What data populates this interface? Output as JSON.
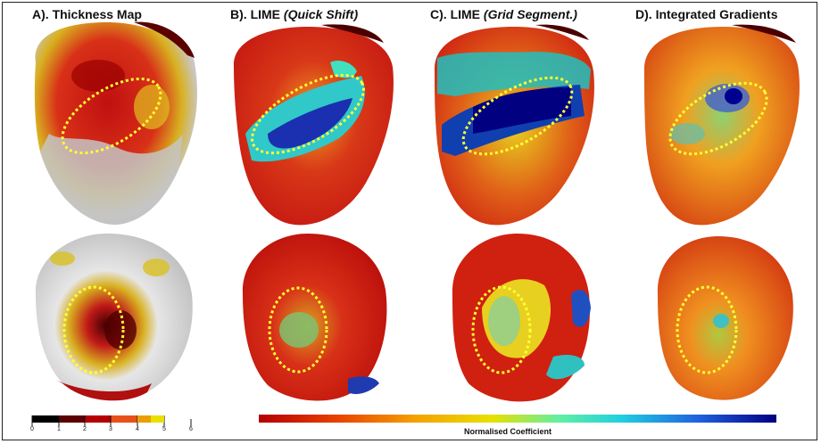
{
  "panels": [
    {
      "prefix": "A). ",
      "method": "Thickness Map",
      "detail": ""
    },
    {
      "prefix": "B). ",
      "method": "LIME ",
      "detail": "(Quick Shift)"
    },
    {
      "prefix": "C). ",
      "method": "LIME ",
      "detail": "(Grid Segment.)"
    },
    {
      "prefix": "D). ",
      "method": "Integrated Gradients",
      "detail": ""
    }
  ],
  "thickness_colorbar": {
    "ticks": [
      "0",
      "1",
      "2",
      "3",
      "4",
      "5",
      "6"
    ],
    "colors": [
      "#000000",
      "#5a0000",
      "#b40000",
      "#e8501a",
      "#e8a000",
      "#e8e000"
    ]
  },
  "coefficient_colorbar": {
    "label": "Normalised Coefficient",
    "colors": [
      "#b40000",
      "#e84000",
      "#f5a000",
      "#e8e000",
      "#60f0a0",
      "#20d0e0",
      "#2060e0",
      "#000080"
    ]
  },
  "highlight_color": "#ffff33"
}
